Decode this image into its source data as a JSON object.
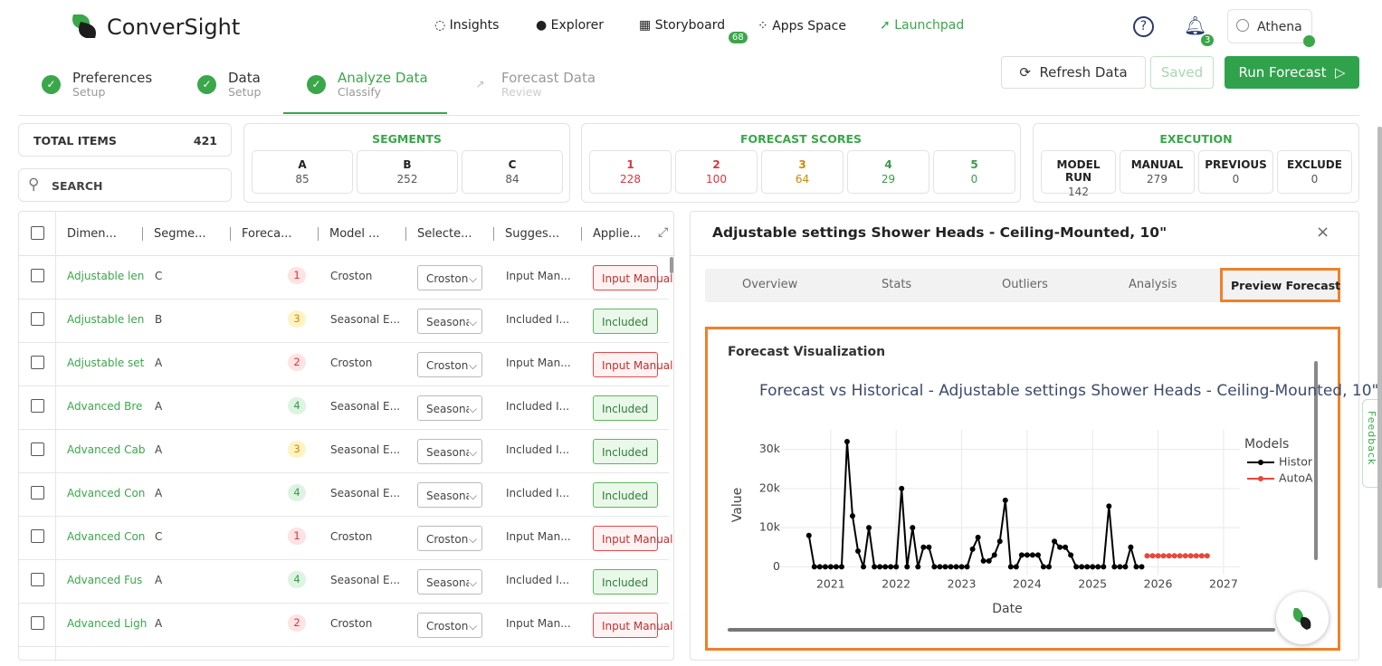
{
  "header": {
    "brand": "ConverSight",
    "nav": [
      {
        "label": "Insights"
      },
      {
        "label": "Explorer"
      },
      {
        "label": "Storyboard",
        "badge": 68
      },
      {
        "label": "Apps Space"
      },
      {
        "label": "Launchpad"
      }
    ],
    "notifications": 3,
    "user": "Athena"
  },
  "steps": [
    {
      "title": "Preferences",
      "sub": "Setup"
    },
    {
      "title": "Data",
      "sub": "Setup"
    },
    {
      "title": "Analyze Data",
      "sub": "Classify"
    },
    {
      "title": "Forecast Data",
      "sub": "Review"
    }
  ],
  "actions": {
    "refresh": "Refresh Data",
    "saved": "Saved",
    "run": "Run Forecast"
  },
  "total": {
    "label": "TOTAL ITEMS",
    "value": 421
  },
  "search": "SEARCH",
  "segments": {
    "title": "SEGMENTS",
    "items": [
      {
        "label": "A",
        "value": 85
      },
      {
        "label": "B",
        "value": 252
      },
      {
        "label": "C",
        "value": 84
      }
    ]
  },
  "forecast_scores": {
    "title": "FORECAST SCORES",
    "items": [
      {
        "label": "1",
        "value": 228
      },
      {
        "label": "2",
        "value": 100
      },
      {
        "label": "3",
        "value": 64
      },
      {
        "label": "4",
        "value": 29
      },
      {
        "label": "5",
        "value": 0
      }
    ]
  },
  "execution": {
    "title": "EXECUTION",
    "items": [
      {
        "label": "MODEL RUN",
        "value": 142
      },
      {
        "label": "MANUAL",
        "value": 279
      },
      {
        "label": "PREVIOUS",
        "value": 0
      },
      {
        "label": "EXCLUDE",
        "value": 0
      }
    ]
  },
  "table": {
    "columns": [
      "Dimen...",
      "Segme...",
      "Foreca...",
      "Model ...",
      "Selecte...",
      "Sugges...",
      "Applie..."
    ],
    "rows": [
      {
        "name": "Adjustable len",
        "segment": "C",
        "score": 1,
        "model": "Croston",
        "selected": "Croston",
        "suggested": "Input Man...",
        "applied": "Input Manual"
      },
      {
        "name": "Adjustable len",
        "segment": "B",
        "score": 3,
        "model": "Seasonal E...",
        "selected": "Seasonal",
        "suggested": "Included I...",
        "applied": "Included"
      },
      {
        "name": "Adjustable set",
        "segment": "A",
        "score": 2,
        "model": "Croston",
        "selected": "Croston",
        "suggested": "Input Man...",
        "applied": "Input Manual"
      },
      {
        "name": "Advanced Bre",
        "segment": "A",
        "score": 4,
        "model": "Seasonal E...",
        "selected": "Seasonal",
        "suggested": "Included I...",
        "applied": "Included"
      },
      {
        "name": "Advanced Cab",
        "segment": "A",
        "score": 3,
        "model": "Seasonal E...",
        "selected": "Seasonal",
        "suggested": "Included I...",
        "applied": "Included"
      },
      {
        "name": "Advanced Con",
        "segment": "A",
        "score": 4,
        "model": "Seasonal E...",
        "selected": "Seasonal",
        "suggested": "Included I...",
        "applied": "Included"
      },
      {
        "name": "Advanced Con",
        "segment": "C",
        "score": 1,
        "model": "Croston",
        "selected": "Croston",
        "suggested": "Input Man...",
        "applied": "Input Manual"
      },
      {
        "name": "Advanced Fus",
        "segment": "A",
        "score": 4,
        "model": "Seasonal E...",
        "selected": "Seasonal",
        "suggested": "Included I...",
        "applied": "Included"
      },
      {
        "name": "Advanced Ligh",
        "segment": "A",
        "score": 2,
        "model": "Croston",
        "selected": "Croston",
        "suggested": "Input Man...",
        "applied": "Input Manual"
      }
    ]
  },
  "detail": {
    "title": "Adjustable settings Shower Heads - Ceiling-Mounted, 10\"",
    "tabs": [
      "Overview",
      "Stats",
      "Outliers",
      "Analysis",
      "Preview Forecast"
    ],
    "card_title": "Forecast Visualization"
  },
  "feedback": "Feedback",
  "chart_data": {
    "type": "line",
    "title": "Forecast vs Historical - Adjustable settings Shower Heads - Ceiling-Mounted, 10\"",
    "x_label": "Date",
    "y_label": "Value",
    "legend_title": "Models",
    "grid": true,
    "xlim": [
      2020.2,
      2027.25
    ],
    "xticks": [
      2021,
      2022,
      2023,
      2024,
      2025,
      2026,
      2027
    ],
    "ylim": [
      -2000,
      35000
    ],
    "yticks": [
      0,
      {
        "value": 10000,
        "label": "10k"
      },
      {
        "value": 20000,
        "label": "20k"
      },
      {
        "value": 30000,
        "label": "30k"
      }
    ],
    "series": [
      {
        "name": "Histor",
        "color": "#000000",
        "x": [
          2020.667,
          2020.75,
          2020.833,
          2020.917,
          2021,
          2021.083,
          2021.167,
          2021.25,
          2021.333,
          2021.417,
          2021.5,
          2021.583,
          2021.667,
          2021.75,
          2021.833,
          2021.917,
          2022,
          2022.083,
          2022.167,
          2022.25,
          2022.333,
          2022.417,
          2022.5,
          2022.583,
          2022.667,
          2022.75,
          2022.833,
          2022.917,
          2023,
          2023.083,
          2023.167,
          2023.25,
          2023.333,
          2023.417,
          2023.5,
          2023.583,
          2023.667,
          2023.75,
          2023.833,
          2023.917,
          2024,
          2024.083,
          2024.167,
          2024.25,
          2024.333,
          2024.417,
          2024.5,
          2024.583,
          2024.667,
          2024.75,
          2024.833,
          2024.917,
          2025,
          2025.083,
          2025.167,
          2025.25,
          2025.333,
          2025.417,
          2025.5,
          2025.583,
          2025.667,
          2025.75
        ],
        "values": [
          8000,
          0,
          0,
          0,
          0,
          0,
          0,
          32000,
          13000,
          4000,
          0,
          10000,
          0,
          0,
          0,
          0,
          0,
          20000,
          0,
          10000,
          0,
          5000,
          5000,
          0,
          0,
          0,
          0,
          0,
          0,
          0,
          4500,
          7500,
          1500,
          1500,
          3000,
          6500,
          17000,
          0,
          0,
          3000,
          3000,
          3000,
          3000,
          0,
          0,
          6500,
          5000,
          5000,
          3000,
          0,
          0,
          0,
          0,
          0,
          0,
          15500,
          0,
          0,
          0,
          5000,
          0,
          0
        ]
      },
      {
        "name": "AutoA",
        "color": "#e8473b",
        "x": [
          2025.833,
          2025.917,
          2026,
          2026.083,
          2026.167,
          2026.25,
          2026.333,
          2026.417,
          2026.5,
          2026.583,
          2026.667,
          2026.75
        ],
        "values": [
          2800,
          2800,
          2800,
          2800,
          2800,
          2800,
          2800,
          2800,
          2800,
          2800,
          2800,
          2800
        ]
      }
    ]
  }
}
